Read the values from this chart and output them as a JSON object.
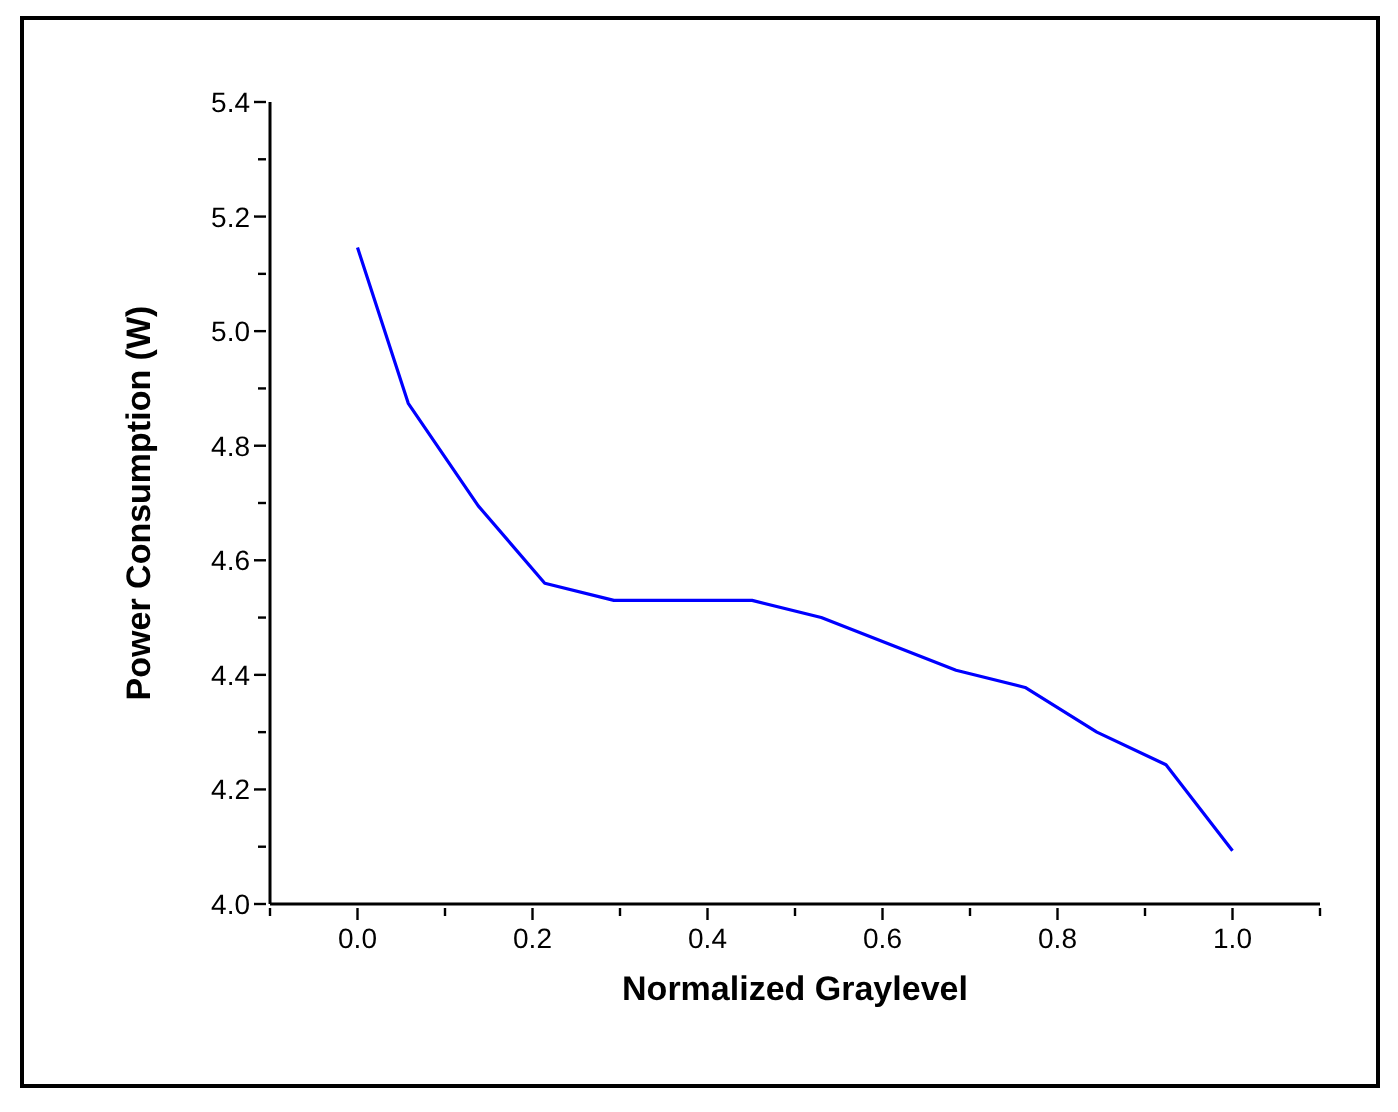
{
  "chart_data": {
    "type": "line",
    "xlabel": "Normalized Graylevel",
    "ylabel": "Power Consumption (W)",
    "x": [
      0,
      0.058,
      0.138,
      0.214,
      0.293,
      0.451,
      0.53,
      0.684,
      0.763,
      0.845,
      0.924,
      1.0
    ],
    "series": [
      {
        "color": "#0000ff",
        "values": [
          5.146,
          4.874,
          4.695,
          4.56,
          4.53,
          4.53,
          4.5,
          4.408,
          4.378,
          4.3,
          4.243,
          4.093
        ]
      }
    ],
    "xlim": [
      -0.1,
      1.1
    ],
    "xticks": [
      {
        "value": -0.1,
        "label": null
      },
      {
        "value": 0,
        "label": "0.0"
      },
      {
        "value": 0.1,
        "label": null
      },
      0.2,
      {
        "value": 0.3,
        "label": null
      },
      0.4,
      {
        "value": 0.5,
        "label": null
      },
      0.6,
      {
        "value": 0.7,
        "label": null
      },
      0.8,
      {
        "value": 0.9,
        "label": null
      },
      {
        "value": 1,
        "label": "1.0"
      },
      {
        "value": 1.1,
        "label": null
      }
    ],
    "ylim": [
      4.0,
      5.4
    ],
    "yticks": [
      {
        "value": 4,
        "label": "4.0"
      },
      {
        "value": 4.1,
        "label": null
      },
      4.2,
      {
        "value": 4.3,
        "label": null
      },
      4.4,
      {
        "value": 4.5,
        "label": null
      },
      4.6,
      {
        "value": 4.7,
        "label": null
      },
      4.8,
      {
        "value": 4.9,
        "label": null
      },
      {
        "value": 5,
        "label": "5.0"
      },
      {
        "value": 5.1,
        "label": null
      },
      5.2,
      {
        "value": 5.3,
        "label": null
      },
      5.4
    ],
    "grid": false,
    "legend": false,
    "marker": "none",
    "line_style": "solid"
  }
}
